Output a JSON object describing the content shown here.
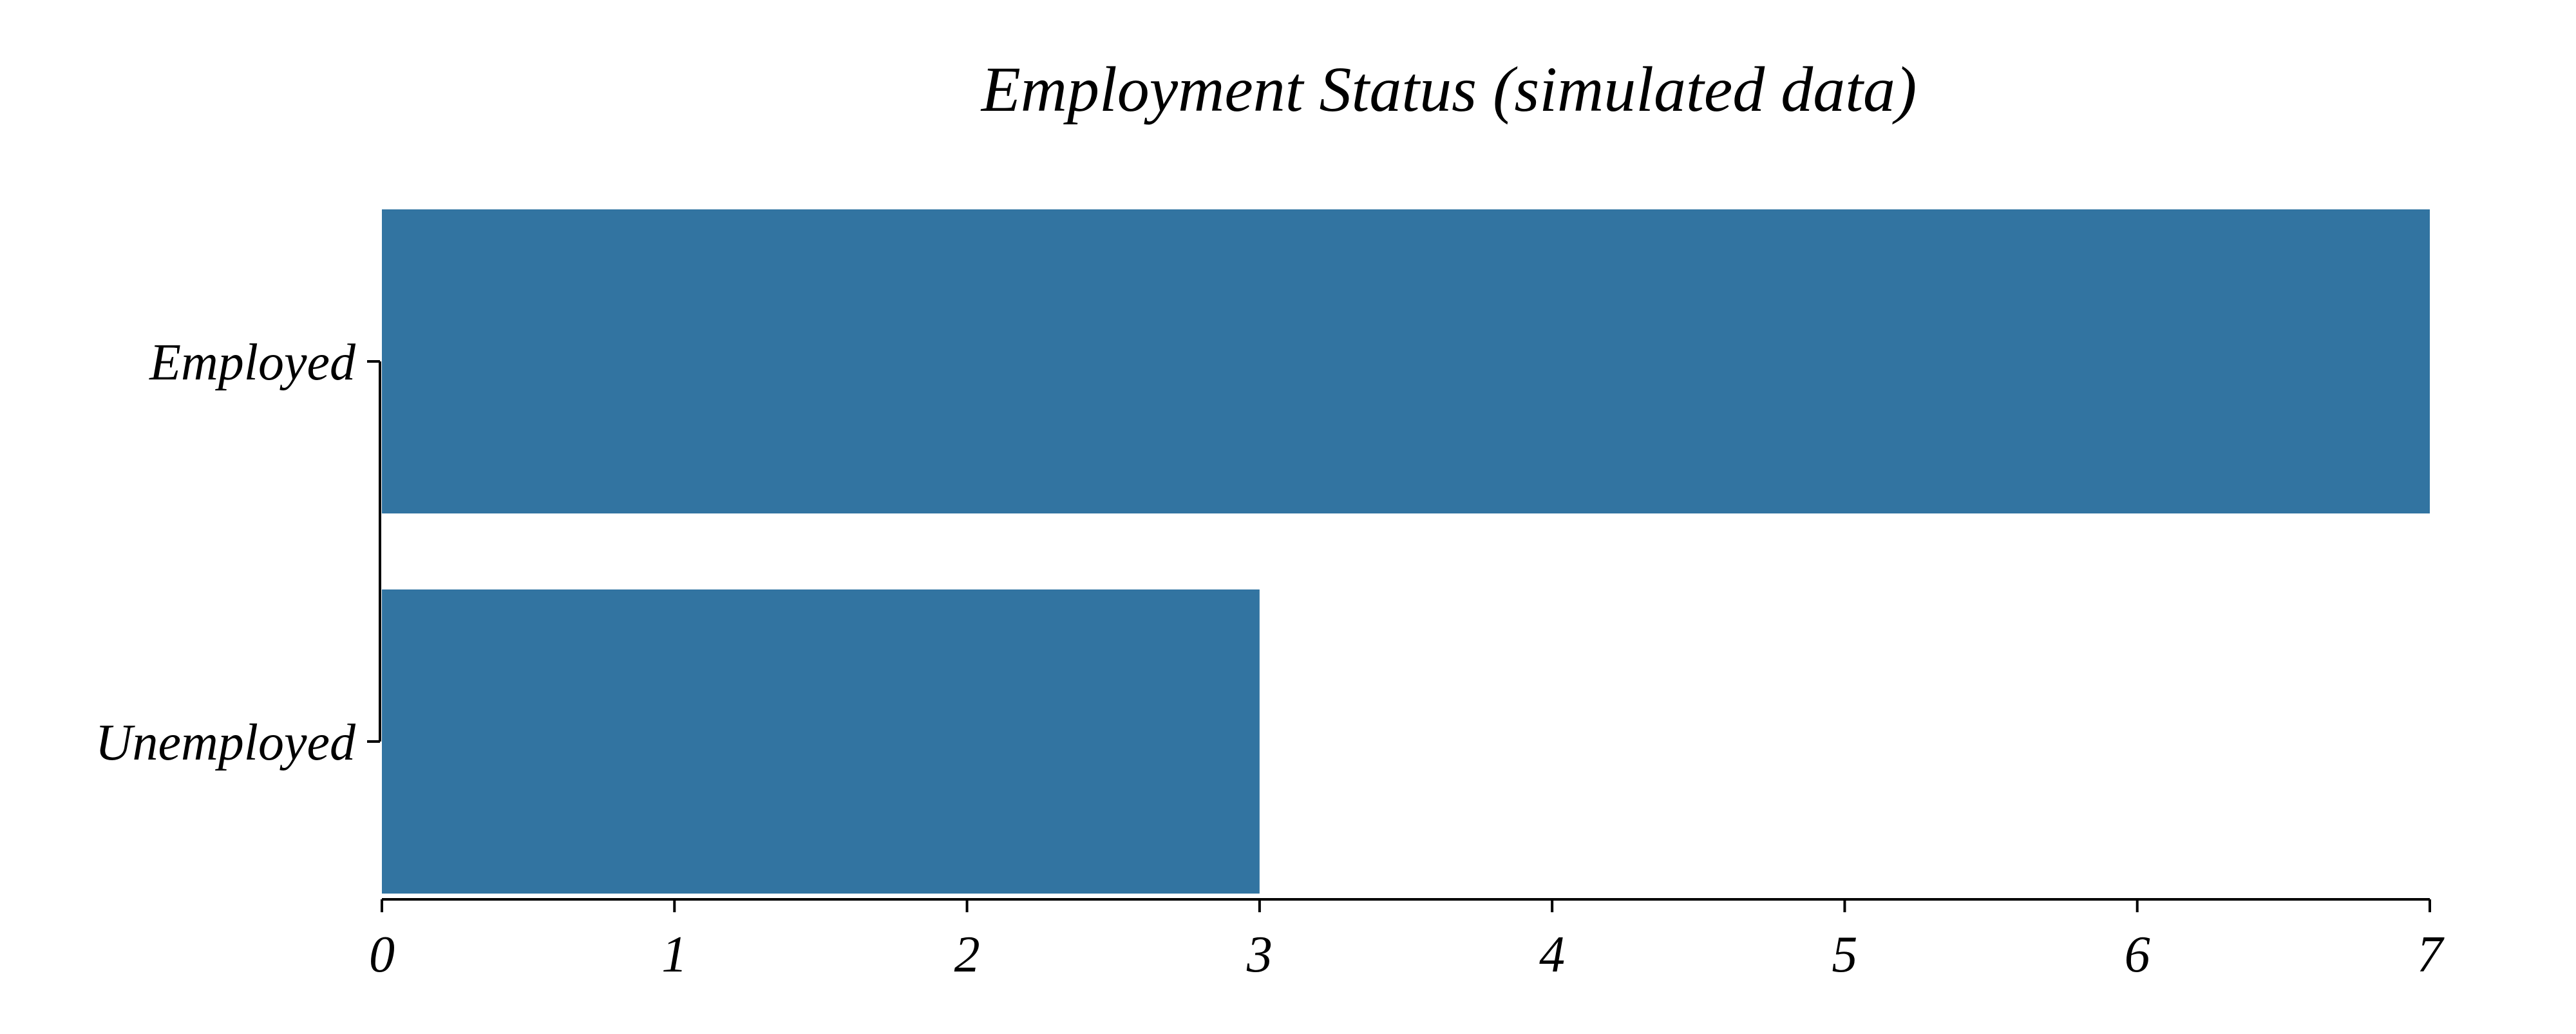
{
  "chart_data": {
    "type": "bar",
    "orientation": "horizontal",
    "title": "Employment Status (simulated data)",
    "xlabel": "",
    "ylabel": "",
    "categories": [
      "Employed",
      "Unemployed"
    ],
    "values": [
      7,
      3
    ],
    "xlim": [
      0,
      7
    ],
    "x_ticks": [
      0,
      1,
      2,
      3,
      4,
      5,
      6,
      7
    ],
    "grid": false,
    "legend": "none",
    "bar_color": "#3274a1",
    "axis_color": "#000000"
  }
}
